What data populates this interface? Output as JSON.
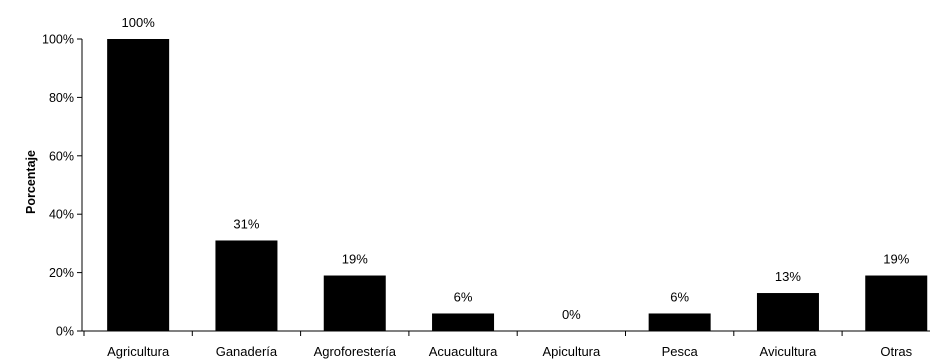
{
  "chart_data": {
    "type": "bar",
    "categories": [
      "Agricultura",
      "Ganadería",
      "Agroforestería",
      "Acuacultura",
      "Apicultura",
      "Pesca",
      "Avicultura",
      "Otras"
    ],
    "values": [
      100,
      31,
      19,
      6,
      0,
      6,
      13,
      19
    ],
    "data_labels": [
      "100%",
      "31%",
      "19%",
      "6%",
      "0%",
      "6%",
      "13%",
      "19%"
    ],
    "title": "",
    "xlabel": "",
    "ylabel": "Porcentaje",
    "ylim": [
      0,
      100
    ],
    "yticks": [
      0,
      20,
      40,
      60,
      80,
      100
    ],
    "ytick_labels": [
      "0%",
      "20%",
      "40%",
      "60%",
      "80%",
      "100%"
    ],
    "grid": false,
    "bar_color": "#000000"
  }
}
